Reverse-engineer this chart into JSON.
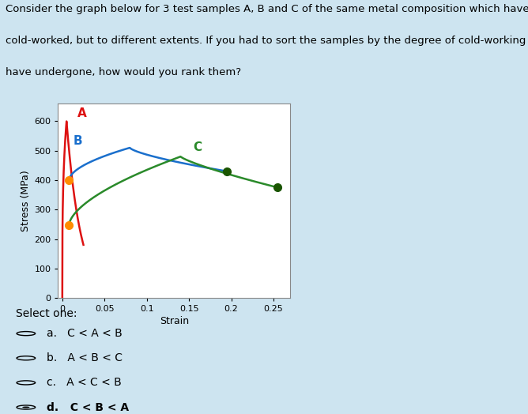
{
  "background_color": "#cde4f0",
  "fig_bg_color": "#cde4f0",
  "plot_bg_color": "#ffffff",
  "title_line1": "Consider the graph below for 3 test samples A, B and C of the same metal composition which have been",
  "title_line2": "cold-worked, but to different extents. If you had to sort the samples by the degree of cold-working they",
  "title_line3": "have undergone, how would you rank them?",
  "title_fontsize": 9.5,
  "ylabel": "Stress (MPa)",
  "xlabel": "Strain",
  "ylim": [
    0,
    660
  ],
  "xlim": [
    -0.005,
    0.27
  ],
  "yticks": [
    0,
    100,
    200,
    300,
    400,
    500,
    600
  ],
  "xticks": [
    0,
    0.05,
    0.1,
    0.15,
    0.2,
    0.25
  ],
  "curve_A_color": "#dd1111",
  "curve_B_color": "#1a6fcc",
  "curve_C_color": "#2a8a2a",
  "label_A": "A",
  "label_B": "B",
  "label_C": "C",
  "label_A_color": "#dd1111",
  "label_B_color": "#1a6fcc",
  "label_C_color": "#2a8a2a",
  "marker_start_color": "#ff8c00",
  "marker_end_B_color": "#1a5500",
  "marker_end_C_color": "#1a5500",
  "options_title": "Select one:",
  "options": [
    {
      "key": "a",
      "text": "C < A < B",
      "selected": false
    },
    {
      "key": "b",
      "text": "A < B < C",
      "selected": false
    },
    {
      "key": "c",
      "text": "A < C < B",
      "selected": false
    },
    {
      "key": "d",
      "text": "C < B < A",
      "selected": true
    }
  ]
}
